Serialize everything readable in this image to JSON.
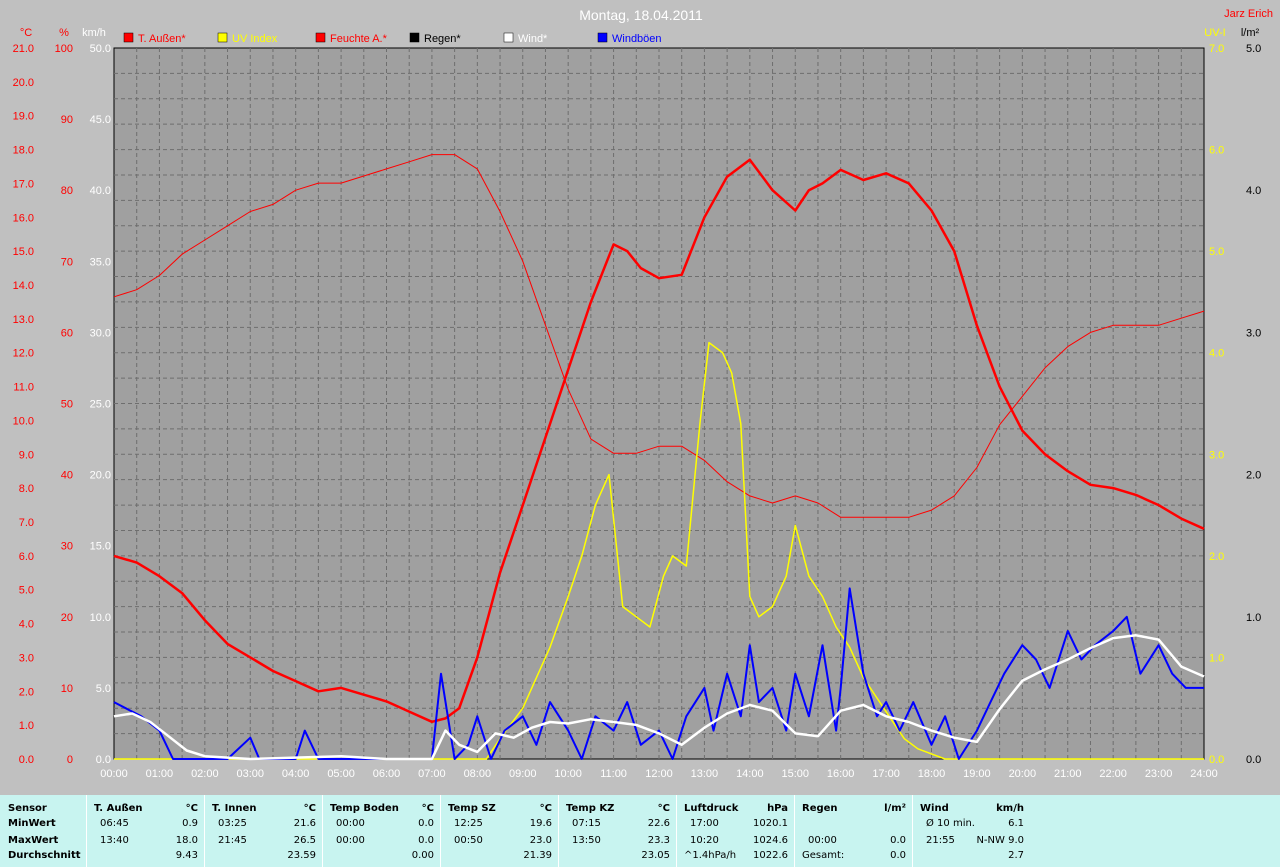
{
  "chart_data": {
    "type": "line",
    "title": "Montag, 18.04.2011",
    "author": "Jarz Erich",
    "x_ticks": [
      "00:00",
      "01:00",
      "02:00",
      "03:00",
      "04:00",
      "05:00",
      "06:00",
      "07:00",
      "08:00",
      "09:00",
      "10:00",
      "11:00",
      "12:00",
      "13:00",
      "14:00",
      "15:00",
      "16:00",
      "17:00",
      "18:00",
      "19:00",
      "20:00",
      "21:00",
      "22:00",
      "23:00",
      "24:00"
    ],
    "axes": {
      "temp": {
        "unit": "°C",
        "range": [
          0,
          21
        ],
        "ticks": [
          "0.0",
          "1.0",
          "2.0",
          "3.0",
          "4.0",
          "5.0",
          "6.0",
          "7.0",
          "8.0",
          "9.0",
          "10.0",
          "11.0",
          "12.0",
          "13.0",
          "14.0",
          "15.0",
          "16.0",
          "17.0",
          "18.0",
          "19.0",
          "20.0",
          "21.0"
        ],
        "color": "#ff0000"
      },
      "humidity": {
        "unit": "%",
        "range": [
          0,
          100
        ],
        "ticks": [
          "0",
          "10",
          "20",
          "30",
          "40",
          "50",
          "60",
          "70",
          "80",
          "90",
          "100"
        ],
        "color": "#ff0000"
      },
      "wind": {
        "unit": "km/h",
        "range": [
          0,
          50
        ],
        "ticks": [
          "0.0",
          "5.0",
          "10.0",
          "15.0",
          "20.0",
          "25.0",
          "30.0",
          "35.0",
          "40.0",
          "45.0",
          "50.0"
        ],
        "color": "#ffffff"
      },
      "uv": {
        "unit": "UV-I",
        "range": [
          0,
          7
        ],
        "ticks": [
          "0.0",
          "1.0",
          "2.0",
          "3.0",
          "4.0",
          "5.0",
          "6.0",
          "7.0"
        ],
        "color": "#ffff00"
      },
      "rain": {
        "unit": "l/m²",
        "range": [
          0,
          5
        ],
        "ticks": [
          "0.0",
          "1.0",
          "2.0",
          "3.0",
          "4.0",
          "5.0"
        ],
        "color": "#000000"
      }
    },
    "legend": [
      {
        "label": "T. Außen*",
        "color": "#ff0000"
      },
      {
        "label": "UV Index",
        "color": "#ffff00"
      },
      {
        "label": "Feuchte A.*",
        "color": "#ff0000"
      },
      {
        "label": "Regen*",
        "color": "#000000"
      },
      {
        "label": "Wind*",
        "color": "#ffffff"
      },
      {
        "label": "Windböen",
        "color": "#0000ff"
      }
    ],
    "series": [
      {
        "name": "T. Außen*",
        "axis": "temp",
        "color": "#ff0000",
        "width": 2.5,
        "x": [
          0,
          0.5,
          1,
          1.5,
          2,
          2.5,
          3,
          3.5,
          4,
          4.5,
          5,
          5.5,
          6,
          6.5,
          7,
          7.3,
          7.6,
          8,
          8.5,
          9,
          9.5,
          10,
          10.5,
          11,
          11.3,
          11.6,
          12,
          12.5,
          13,
          13.5,
          14,
          14.5,
          15,
          15.3,
          15.6,
          16,
          16.5,
          17,
          17.5,
          18,
          18.5,
          19,
          19.5,
          20,
          20.5,
          21,
          21.5,
          22,
          22.5,
          23,
          23.5,
          24
        ],
        "values": [
          6.0,
          5.8,
          5.4,
          4.9,
          4.1,
          3.4,
          3.0,
          2.6,
          2.3,
          2.0,
          2.1,
          1.9,
          1.7,
          1.4,
          1.1,
          1.2,
          1.5,
          3.0,
          5.5,
          7.5,
          9.5,
          11.5,
          13.5,
          15.2,
          15.0,
          14.5,
          14.2,
          14.3,
          16.0,
          17.2,
          17.7,
          16.8,
          16.2,
          16.8,
          17.0,
          17.4,
          17.1,
          17.3,
          17.0,
          16.2,
          15.0,
          12.8,
          11.0,
          9.7,
          9.0,
          8.5,
          8.1,
          8.0,
          7.8,
          7.5,
          7.1,
          6.8
        ]
      },
      {
        "name": "Feuchte A.*",
        "axis": "humidity",
        "color": "#ff0000",
        "width": 1,
        "x": [
          0,
          0.5,
          1,
          1.5,
          2,
          2.5,
          3,
          3.5,
          4,
          4.5,
          5,
          5.5,
          6,
          6.5,
          7,
          7.5,
          8,
          8.5,
          9,
          9.5,
          10,
          10.5,
          11,
          11.5,
          12,
          12.5,
          13,
          13.5,
          14,
          14.5,
          15,
          15.5,
          16,
          16.5,
          17,
          17.5,
          18,
          18.5,
          19,
          19.5,
          20,
          20.5,
          21,
          21.5,
          22,
          22.5,
          23,
          23.5,
          24
        ],
        "values": [
          65,
          66,
          68,
          71,
          73,
          75,
          77,
          78,
          80,
          81,
          81,
          82,
          83,
          84,
          85,
          85,
          83,
          77,
          70,
          61,
          52,
          45,
          43,
          43,
          44,
          44,
          42,
          39,
          37,
          36,
          37,
          36,
          34,
          34,
          34,
          34,
          35,
          37,
          41,
          47,
          51,
          55,
          58,
          60,
          61,
          61,
          61,
          62,
          63
        ]
      },
      {
        "name": "UV Index",
        "axis": "uv",
        "color": "#ffff00",
        "width": 1.5,
        "x": [
          0,
          8.2,
          8.5,
          9,
          9.3,
          9.6,
          10,
          10.3,
          10.6,
          10.9,
          11.2,
          11.5,
          11.8,
          12.1,
          12.3,
          12.6,
          12.9,
          13.1,
          13.4,
          13.6,
          13.8,
          14,
          14.2,
          14.5,
          14.8,
          15,
          15.3,
          15.6,
          15.9,
          16.2,
          16.5,
          16.8,
          17.1,
          17.4,
          17.7,
          18,
          18.3,
          24
        ],
        "values": [
          0,
          0,
          0.2,
          0.5,
          0.8,
          1.1,
          1.6,
          2.0,
          2.5,
          2.8,
          1.5,
          1.4,
          1.3,
          1.8,
          2.0,
          1.9,
          3.3,
          4.1,
          4.0,
          3.8,
          3.3,
          1.6,
          1.4,
          1.5,
          1.8,
          2.3,
          1.8,
          1.6,
          1.3,
          1.1,
          0.8,
          0.6,
          0.4,
          0.2,
          0.1,
          0.05,
          0,
          0
        ]
      },
      {
        "name": "Windböen",
        "axis": "wind",
        "color": "#0000ff",
        "width": 2,
        "x": [
          0,
          0.3,
          0.6,
          1,
          1.3,
          1.6,
          2,
          2.5,
          3,
          3.2,
          3.5,
          4,
          4.2,
          4.5,
          5,
          5.5,
          6,
          6.5,
          7,
          7.2,
          7.5,
          7.8,
          8,
          8.3,
          8.6,
          9,
          9.3,
          9.6,
          10,
          10.3,
          10.6,
          11,
          11.3,
          11.6,
          12,
          12.3,
          12.6,
          13,
          13.2,
          13.5,
          13.8,
          14,
          14.2,
          14.5,
          14.8,
          15,
          15.3,
          15.6,
          15.9,
          16,
          16.2,
          16.5,
          16.8,
          17,
          17.3,
          17.6,
          18,
          18.3,
          18.6,
          19,
          19.3,
          19.6,
          20,
          20.3,
          20.6,
          21,
          21.3,
          21.6,
          22,
          22.3,
          22.6,
          23,
          23.3,
          23.6,
          24
        ],
        "values": [
          4,
          3.5,
          3,
          2,
          0,
          0,
          0,
          0,
          1.5,
          0,
          0,
          0,
          2,
          0,
          0,
          0,
          0,
          0,
          0,
          6,
          0,
          1,
          3,
          0,
          2,
          3,
          1,
          4,
          2,
          0,
          3,
          2,
          4,
          1,
          2,
          0,
          3,
          5,
          2,
          6,
          3,
          8,
          4,
          5,
          2,
          6,
          3,
          8,
          2,
          5,
          12,
          6,
          3,
          4,
          2,
          4,
          1,
          3,
          0,
          2,
          4,
          6,
          8,
          7,
          5,
          9,
          7,
          8,
          9,
          10,
          6,
          8,
          6,
          5,
          5
        ]
      },
      {
        "name": "Wind*",
        "axis": "wind",
        "color": "#ffffff",
        "width": 2.5,
        "x": [
          0,
          0.4,
          0.8,
          1.2,
          1.6,
          2,
          2.5,
          3,
          4,
          5,
          6,
          7,
          7.3,
          7.6,
          8,
          8.4,
          8.8,
          9.2,
          9.6,
          10,
          10.5,
          11,
          11.5,
          12,
          12.5,
          13,
          13.5,
          14,
          14.5,
          15,
          15.5,
          16,
          16.5,
          17,
          17.5,
          18,
          18.5,
          19,
          19.5,
          20,
          20.5,
          21,
          21.5,
          22,
          22.5,
          23,
          23.5,
          24
        ],
        "values": [
          3,
          3.2,
          2.6,
          1.6,
          0.6,
          0.2,
          0.1,
          0,
          0.1,
          0.2,
          0,
          0,
          2,
          1,
          0.5,
          1.8,
          1.5,
          2.2,
          2.6,
          2.5,
          2.8,
          2.6,
          2.4,
          1.8,
          1.0,
          2.2,
          3.2,
          3.8,
          3.4,
          1.8,
          1.6,
          3.4,
          3.8,
          3.0,
          2.6,
          2.0,
          1.5,
          1.2,
          3.5,
          5.5,
          6.3,
          7.0,
          7.8,
          8.5,
          8.7,
          8.4,
          6.5,
          5.8
        ]
      }
    ]
  },
  "stats": {
    "labels": {
      "sensor": "Sensor",
      "min": "MinWert",
      "max": "MaxWert",
      "avg": "Durchschnitt"
    },
    "columns": [
      {
        "title": "T. Außen",
        "unit": "°C",
        "min_time": "06:45",
        "min_val": "0.9",
        "max_time": "13:40",
        "max_val": "18.0",
        "avg_time": "",
        "avg_val": "9.43"
      },
      {
        "title": "T. Innen",
        "unit": "°C",
        "min_time": "03:25",
        "min_val": "21.6",
        "max_time": "21:45",
        "max_val": "26.5",
        "avg_time": "",
        "avg_val": "23.59"
      },
      {
        "title": "Temp Boden",
        "unit": "°C",
        "min_time": "00:00",
        "min_val": "0.0",
        "max_time": "00:00",
        "max_val": "0.0",
        "avg_time": "",
        "avg_val": "0.00"
      },
      {
        "title": "Temp SZ",
        "unit": "°C",
        "min_time": "12:25",
        "min_val": "19.6",
        "max_time": "00:50",
        "max_val": "23.0",
        "avg_time": "",
        "avg_val": "21.39"
      },
      {
        "title": "Temp KZ",
        "unit": "°C",
        "min_time": "07:15",
        "min_val": "22.6",
        "max_time": "13:50",
        "max_val": "23.3",
        "avg_time": "",
        "avg_val": "23.05"
      },
      {
        "title": "Luftdruck",
        "unit": "hPa",
        "min_time": "17:00",
        "min_val": "1020.1",
        "max_time": "10:20",
        "max_val": "1024.6",
        "avg_time": "^1.4hPa/h",
        "avg_val": "1022.6"
      },
      {
        "title": "Regen",
        "unit": "l/m²",
        "min_time": "",
        "min_val": "",
        "max_time": "00:00",
        "max_val": "0.0",
        "avg_time": "Gesamt:",
        "avg_val": "0.0"
      },
      {
        "title": "Wind",
        "unit": "km/h",
        "min_time": "Ø 10 min.",
        "min_val": "6.1",
        "max_time": "21:55",
        "max_val": "N-NW 9.0",
        "avg_time": "",
        "avg_val": "2.7"
      }
    ]
  }
}
